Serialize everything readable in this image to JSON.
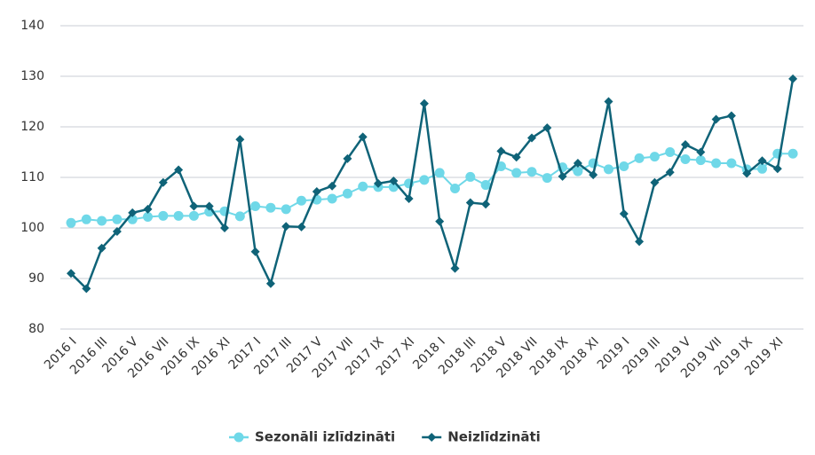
{
  "chart_data": {
    "type": "line",
    "categories": [
      "2016 I",
      null,
      "2016 III",
      null,
      "2016 V",
      null,
      "2016 VII",
      null,
      "2016 IX",
      null,
      "2016 XI",
      null,
      "2017 I",
      null,
      "2017 III",
      null,
      "2017 V",
      null,
      "2017 VII",
      null,
      "2017 IX",
      null,
      "2017 XI",
      null,
      "2018 I",
      null,
      "2018 III",
      null,
      "2018 V",
      null,
      "2018 VII",
      null,
      "2018 IX",
      null,
      "2018 XI",
      null,
      "2019 I",
      null,
      "2019 III",
      null,
      "2019 V",
      null,
      "2019 VII",
      null,
      "2019 IX",
      null,
      "2019 XI",
      null
    ],
    "series": [
      {
        "name": "Sezonāli izlīdzināti",
        "color": "#6fd8e8",
        "marker": "circle",
        "values": [
          101,
          101.7,
          101.4,
          101.7,
          101.7,
          102.2,
          102.4,
          102.4,
          102.4,
          103.2,
          103.3,
          102.3,
          104.3,
          104,
          103.7,
          105.4,
          105.6,
          105.8,
          106.8,
          108.2,
          108.1,
          108.1,
          108.8,
          109.5,
          110.9,
          107.8,
          110.1,
          108.5,
          112.2,
          110.9,
          111.1,
          109.9,
          112,
          111.2,
          112.8,
          111.6,
          112.2,
          113.8,
          114.1,
          115,
          113.6,
          113.4,
          112.8,
          112.8,
          111.6,
          111.7,
          114.7,
          114.7
        ]
      },
      {
        "name": "Neizlīdzināti",
        "color": "#0f6378",
        "marker": "diamond",
        "values": [
          91,
          88,
          96,
          99.3,
          103,
          103.7,
          109,
          111.5,
          104.3,
          104.3,
          100,
          117.5,
          95.3,
          89,
          100.3,
          100.2,
          107.2,
          108.3,
          113.7,
          118,
          108.8,
          109.3,
          105.8,
          124.6,
          101.3,
          92,
          105,
          104.7,
          115.2,
          114,
          117.8,
          119.8,
          110.2,
          112.8,
          110.5,
          125,
          102.8,
          97.3,
          109,
          111,
          116.5,
          115,
          121.5,
          122.2,
          110.8,
          113.3,
          111.7,
          129.5
        ]
      }
    ],
    "ylim": [
      80,
      140
    ],
    "yticks": [
      80,
      90,
      100,
      110,
      120,
      130,
      140
    ],
    "grid": true,
    "legend": "bottom"
  }
}
